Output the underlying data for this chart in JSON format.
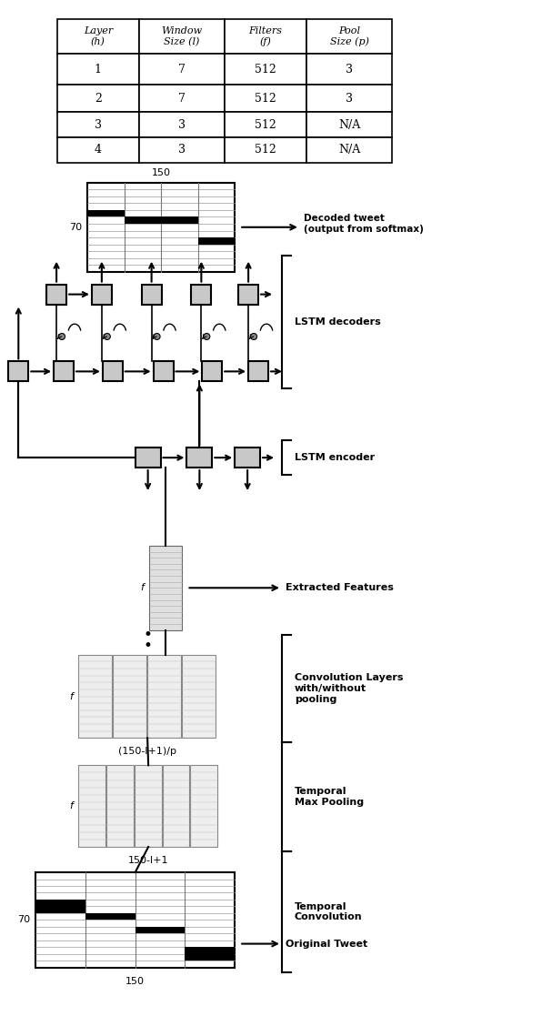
{
  "table_headers": [
    "Layer\n(h)",
    "Window\nSize (l)",
    "Filters\n(f)",
    "Pool\nSize (p)"
  ],
  "table_data": [
    [
      "1",
      "7",
      "512",
      "3"
    ],
    [
      "2",
      "7",
      "512",
      "3"
    ],
    [
      "3",
      "3",
      "512",
      "N/A"
    ],
    [
      "4",
      "3",
      "512",
      "N/A"
    ]
  ],
  "bg_color": "#ffffff",
  "box_fc": "#c8c8c8",
  "box_ec": "#000000"
}
